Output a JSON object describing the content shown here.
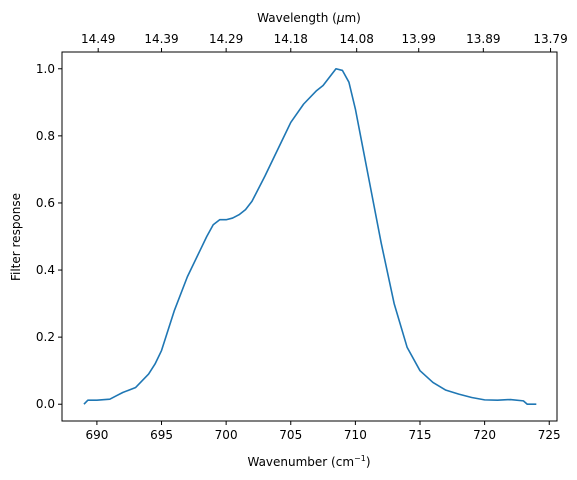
{
  "chart_data": {
    "type": "line",
    "title": "",
    "xlabel": "Wavenumber (cm",
    "xlabel_sup": "−1",
    "xlabel_tail": ")",
    "ylabel": "Filter response",
    "top_xlabel": "Wavelength (",
    "top_xlabel_mu": "μ",
    "top_xlabel_tail": "m)",
    "xlim": [
      687.3,
      725.6
    ],
    "ylim": [
      -0.05,
      1.05
    ],
    "x_ticks": [
      690,
      695,
      700,
      705,
      710,
      715,
      720,
      725
    ],
    "y_ticks": [
      0.0,
      0.2,
      0.4,
      0.6,
      0.8,
      1.0
    ],
    "top_ticks": [
      {
        "position": 690.1,
        "label": "14.49"
      },
      {
        "position": 695.0,
        "label": "14.39"
      },
      {
        "position": 700.0,
        "label": "14.29"
      },
      {
        "position": 705.0,
        "label": "14.18"
      },
      {
        "position": 710.1,
        "label": "14.08"
      },
      {
        "position": 714.9,
        "label": "13.99"
      },
      {
        "position": 719.9,
        "label": "13.89"
      },
      {
        "position": 725.1,
        "label": "13.79"
      }
    ],
    "line_color": "#1f77b4",
    "grid": false,
    "series": [
      {
        "x": [
          689.0,
          689.3,
          690.0,
          691.0,
          691.5,
          692.0,
          693.0,
          694.0,
          694.5,
          695.0,
          695.5,
          696.0,
          697.0,
          698.0,
          698.5,
          699.0,
          699.5,
          700.0,
          700.5,
          701.0,
          701.5,
          702.0,
          703.0,
          704.0,
          705.0,
          706.0,
          707.0,
          707.5,
          708.0,
          708.5,
          709.0,
          709.5,
          710.0,
          710.5,
          711.0,
          712.0,
          713.0,
          714.0,
          715.0,
          716.0,
          717.0,
          718.0,
          719.0,
          720.0,
          721.0,
          722.0,
          723.0,
          723.3,
          724.0
        ],
        "y": [
          0.0,
          0.012,
          0.012,
          0.015,
          0.025,
          0.035,
          0.05,
          0.09,
          0.12,
          0.16,
          0.22,
          0.28,
          0.38,
          0.46,
          0.5,
          0.535,
          0.55,
          0.55,
          0.555,
          0.565,
          0.58,
          0.605,
          0.68,
          0.76,
          0.84,
          0.895,
          0.935,
          0.95,
          0.975,
          1.0,
          0.995,
          0.96,
          0.88,
          0.78,
          0.68,
          0.48,
          0.3,
          0.17,
          0.1,
          0.065,
          0.042,
          0.03,
          0.02,
          0.013,
          0.012,
          0.014,
          0.01,
          0.0,
          0.0
        ]
      }
    ]
  }
}
